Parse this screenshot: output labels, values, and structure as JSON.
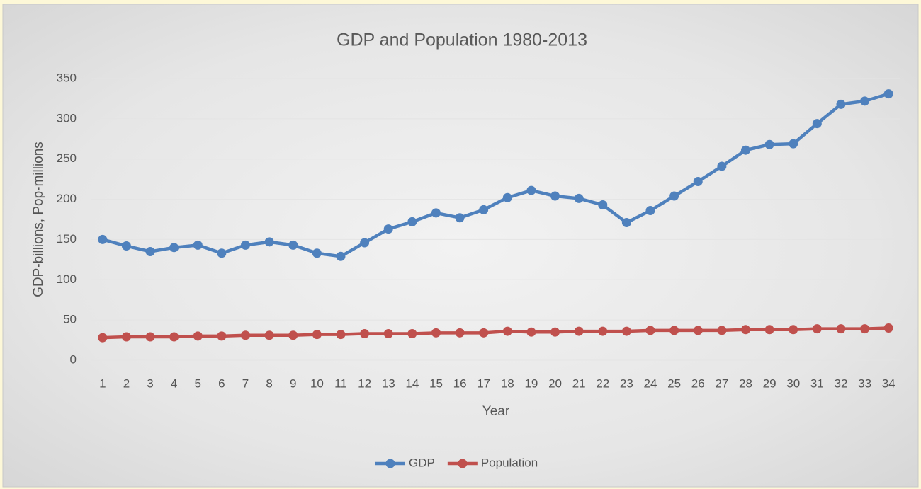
{
  "chart_data": {
    "type": "line",
    "title": "GDP and Population 1980-2013",
    "x_label": "Year",
    "y_label": "GDP-billions, Pop-millions",
    "categories": [
      "1",
      "2",
      "3",
      "4",
      "5",
      "6",
      "7",
      "8",
      "9",
      "10",
      "11",
      "12",
      "13",
      "14",
      "15",
      "16",
      "17",
      "18",
      "19",
      "20",
      "21",
      "22",
      "23",
      "24",
      "25",
      "26",
      "27",
      "28",
      "29",
      "30",
      "31",
      "32",
      "33",
      "34"
    ],
    "series": [
      {
        "name": "GDP",
        "color": "#4f81bd",
        "values": [
          150,
          142,
          135,
          140,
          143,
          133,
          143,
          147,
          143,
          133,
          129,
          146,
          163,
          172,
          183,
          177,
          187,
          202,
          211,
          204,
          201,
          193,
          171,
          186,
          204,
          222,
          241,
          261,
          268,
          269,
          294,
          318,
          322,
          331
        ]
      },
      {
        "name": "Population",
        "color": "#c0504d",
        "values": [
          28,
          29,
          29,
          29,
          30,
          30,
          31,
          31,
          31,
          32,
          32,
          33,
          33,
          33,
          34,
          34,
          34,
          36,
          35,
          35,
          36,
          36,
          36,
          37,
          37,
          37,
          37,
          38,
          38,
          38,
          39,
          39,
          39,
          40
        ]
      }
    ],
    "ylim": [
      0,
      350
    ],
    "yticks": [
      0,
      50,
      100,
      150,
      200,
      250,
      300,
      350
    ],
    "grid": true,
    "legend": "bottom"
  }
}
